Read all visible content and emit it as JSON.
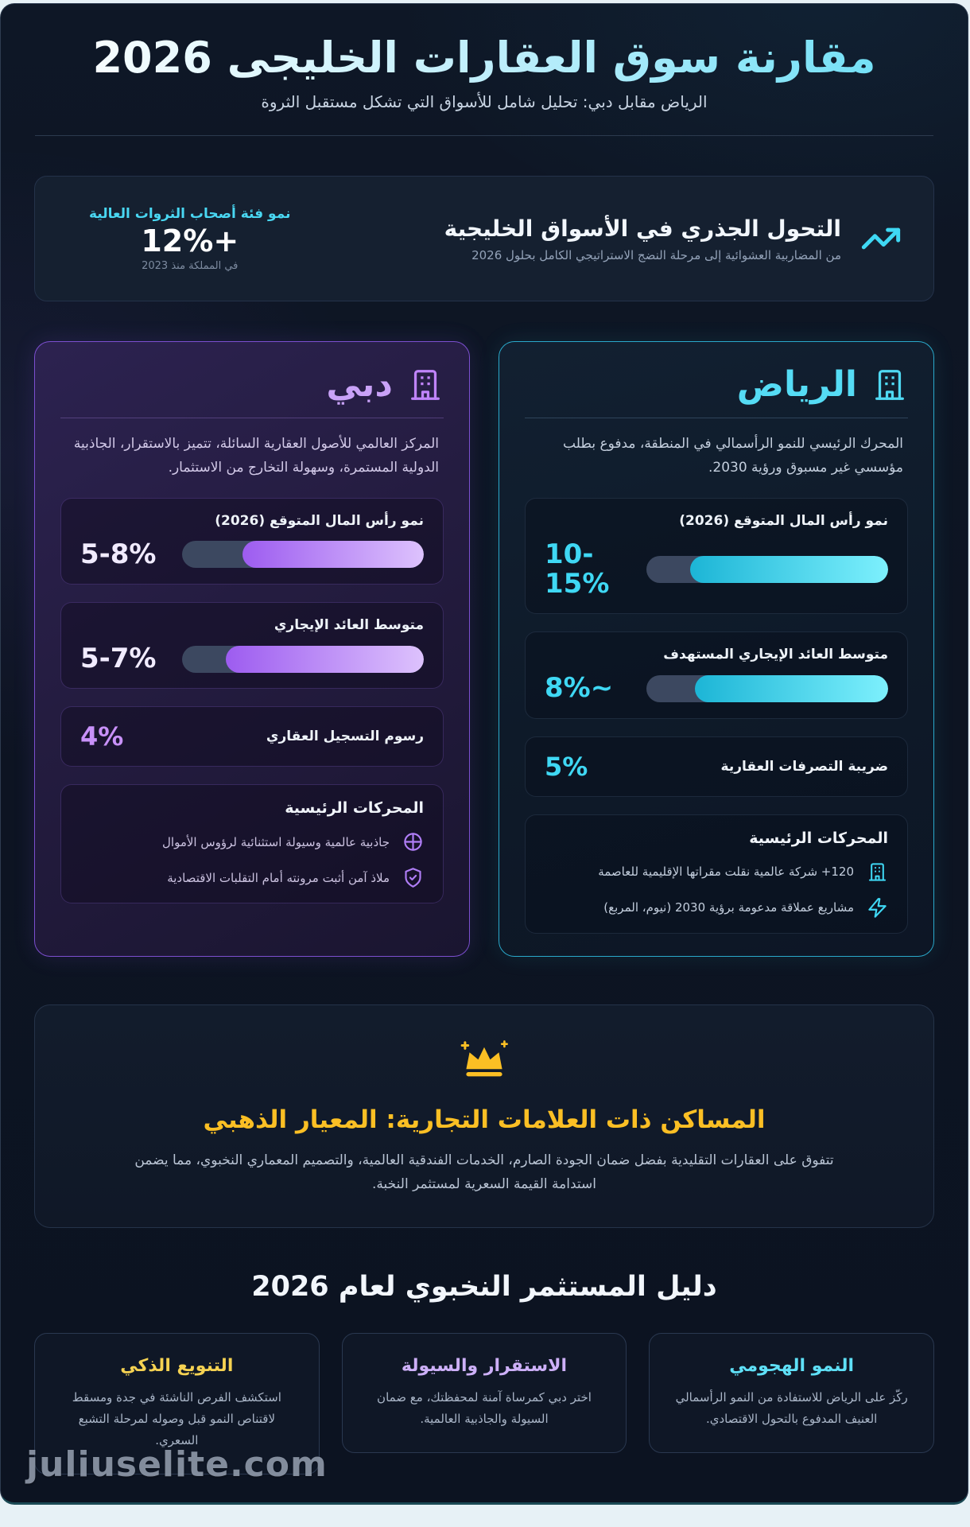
{
  "header": {
    "title": "مقارنة سوق العقارات الخليجى 2026",
    "subtitle": "الرياض مقابل دبي: تحليل شامل للأسواق التي تشكل مستقبل الثروة"
  },
  "hero": {
    "icon": "trending-up-icon",
    "title": "التحول الجذري في الأسواق الخليجية",
    "subtitle": "من المضاربية العشوائية إلى مرحلة النضج الاستراتيجي الكامل بحلول 2026",
    "stat": {
      "label": "نمو فئة أصحاب الثروات العالية",
      "value": "+12%",
      "caption": "في المملكة منذ 2023"
    }
  },
  "riyadh": {
    "name": "الرياض",
    "icon": "building-icon",
    "description": "المحرك الرئيسي للنمو الرأسمالي في المنطقة، مدفوع بطلب مؤسسي غير مسبوق ورؤية 2030.",
    "stats": [
      {
        "label": "نمو رأس المال المتوقع (2026)",
        "value": "10-15%",
        "bar_percent": 82
      },
      {
        "label": "متوسط العائد الإيجاري المستهدف",
        "value": "~8%",
        "bar_percent": 80
      }
    ],
    "tax": {
      "label": "ضريبة التصرفات العقارية",
      "value": "5%"
    },
    "drivers": {
      "heading": "المحركات الرئيسية",
      "items": [
        {
          "icon": "building-icon",
          "text": "⁦+120⁩ شركة عالمية نقلت مقراتها الإقليمية للعاصمة"
        },
        {
          "icon": "zap-icon",
          "text": "مشاريع عملاقة مدعومة برؤية 2030 (نيوم، المربع)"
        }
      ]
    }
  },
  "dubai": {
    "name": "دبي",
    "icon": "building-icon",
    "description": "المركز العالمي للأصول العقارية السائلة، تتميز بالاستقرار، الجاذبية الدولية المستمرة، وسهولة التخارج من الاستثمار.",
    "stats": [
      {
        "label": "نمو رأس المال المتوقع (2026)",
        "value": "5-8%",
        "bar_percent": 75
      },
      {
        "label": "متوسط العائد الإيجاري",
        "value": "5-7%",
        "bar_percent": 82
      }
    ],
    "tax": {
      "label": "رسوم التسجيل العقاري",
      "value": "4%"
    },
    "drivers": {
      "heading": "المحركات الرئيسية",
      "items": [
        {
          "icon": "globe-icon",
          "text": "جاذبية عالمية وسيولة استثنائية لرؤوس الأموال"
        },
        {
          "icon": "shield-check-icon",
          "text": "ملاذ آمن أثبت مرونته أمام التقلبات الاقتصادية"
        }
      ]
    }
  },
  "gold_section": {
    "icon": "crown-icon",
    "title": "المساكن ذات العلامات التجارية: المعيار الذهبي",
    "description": "تتفوق على العقارات التقليدية بفضل ضمان الجودة الصارم، الخدمات الفندقية العالمية، والتصميم المعماري النخبوي، مما يضمن استدامة القيمة السعرية لمستثمر النخبة."
  },
  "guide": {
    "heading": "دليل المستثمر النخبوي لعام 2026",
    "cards": [
      {
        "title": "النمو الهجومي",
        "text": "ركّز على الرياض للاستفادة من النمو الرأسمالي العنيف المدفوع بالتحول الاقتصادي.",
        "accent": "#5fe0f7"
      },
      {
        "title": "الاستقرار والسيولة",
        "text": "اختر دبي كمرساة آمنة لمحفظتك، مع ضمان السيولة والجاذبية العالمية.",
        "accent": "#cdb0f8"
      },
      {
        "title": "التنويع الذكي",
        "text": "استكشف الفرص الناشئة في جدة ومسقط لاقتناص النمو قبل وصوله لمرحلة التشبع السعري.",
        "accent": "#f5d252"
      }
    ]
  },
  "watermark": "juliuselite.com",
  "colors": {
    "background": "#0d1624",
    "accent_cyan": "#3fd8f4",
    "accent_purple": "#c084fc",
    "accent_gold": "#fbbf24",
    "bar_track": "#3c4860"
  }
}
